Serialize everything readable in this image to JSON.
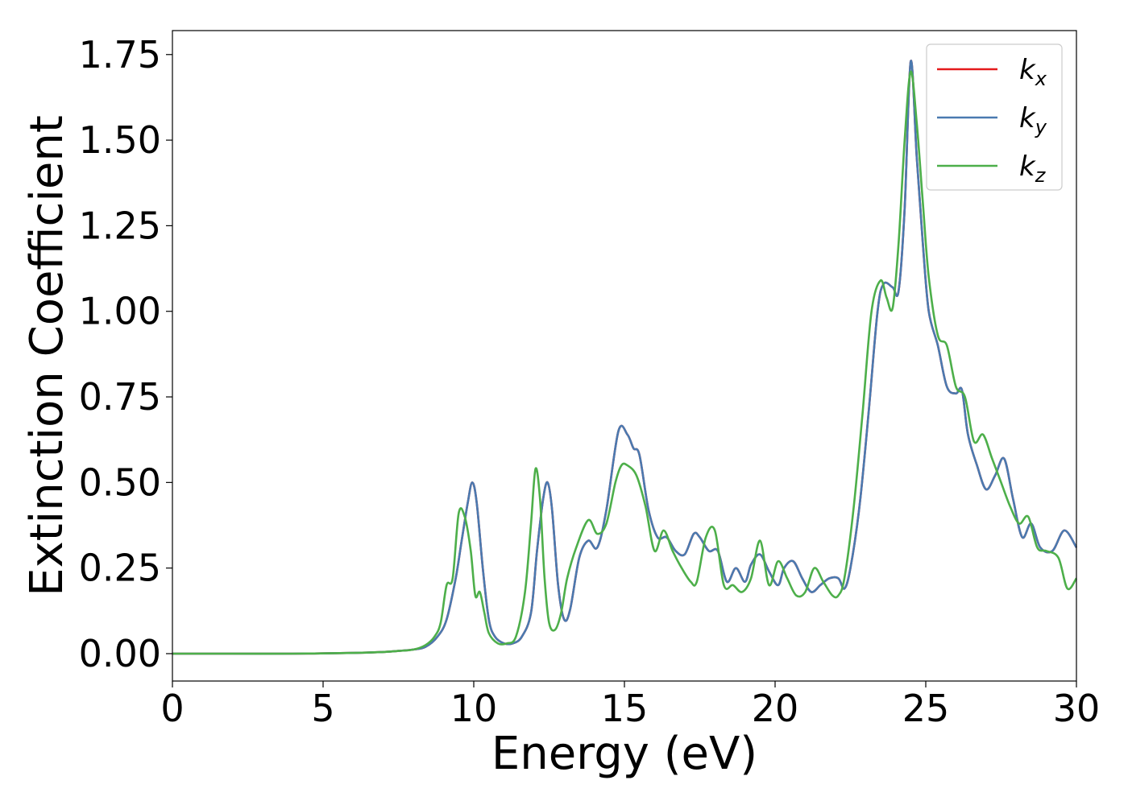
{
  "chart_data": {
    "type": "line",
    "xlabel": "Energy (eV)",
    "ylabel": "Extinction Coefficient",
    "xlim": [
      0,
      30
    ],
    "ylim": [
      -0.08,
      1.82
    ],
    "xticks": [
      0,
      5,
      10,
      15,
      20,
      25,
      30
    ],
    "xtick_labels": [
      "0",
      "5",
      "10",
      "15",
      "20",
      "25",
      "30"
    ],
    "yticks": [
      0.0,
      0.25,
      0.5,
      0.75,
      1.0,
      1.25,
      1.5,
      1.75
    ],
    "ytick_labels": [
      "0.00",
      "0.25",
      "0.50",
      "0.75",
      "1.00",
      "1.25",
      "1.50",
      "1.75"
    ],
    "grid": false,
    "legend": {
      "position": "top-right"
    },
    "series": [
      {
        "name": "k",
        "subscript": "x",
        "color": "#e41a1c",
        "x": [
          0,
          2,
          4,
          6,
          7,
          7.5,
          8,
          8.4,
          8.8,
          9.1,
          9.4,
          9.6,
          9.8,
          9.95,
          10.1,
          10.3,
          10.5,
          10.7,
          11.0,
          11.3,
          11.6,
          11.9,
          12.1,
          12.3,
          12.45,
          12.6,
          12.8,
          13.0,
          13.2,
          13.5,
          13.8,
          14.1,
          14.4,
          14.8,
          15.1,
          15.3,
          15.5,
          15.8,
          16.1,
          16.4,
          16.7,
          17.0,
          17.3,
          17.5,
          17.8,
          18.1,
          18.4,
          18.7,
          19.0,
          19.2,
          19.5,
          19.8,
          20.1,
          20.3,
          20.6,
          20.9,
          21.2,
          21.5,
          21.8,
          22.1,
          22.3,
          22.5,
          22.8,
          23.1,
          23.4,
          23.6,
          23.9,
          24.1,
          24.3,
          24.5,
          24.7,
          24.9,
          25.1,
          25.4,
          25.7,
          26.0,
          26.2,
          26.4,
          26.7,
          27.0,
          27.3,
          27.6,
          27.9,
          28.2,
          28.5,
          28.8,
          29.2,
          29.6,
          30.0
        ],
        "values": [
          0.0,
          0.0,
          0.0,
          0.002,
          0.005,
          0.008,
          0.012,
          0.02,
          0.05,
          0.1,
          0.22,
          0.33,
          0.44,
          0.5,
          0.44,
          0.25,
          0.1,
          0.05,
          0.03,
          0.03,
          0.05,
          0.12,
          0.3,
          0.45,
          0.5,
          0.42,
          0.2,
          0.1,
          0.13,
          0.28,
          0.33,
          0.31,
          0.42,
          0.65,
          0.64,
          0.6,
          0.58,
          0.42,
          0.34,
          0.34,
          0.3,
          0.29,
          0.35,
          0.34,
          0.3,
          0.3,
          0.21,
          0.25,
          0.21,
          0.26,
          0.29,
          0.24,
          0.2,
          0.25,
          0.27,
          0.22,
          0.18,
          0.2,
          0.22,
          0.22,
          0.19,
          0.25,
          0.43,
          0.7,
          1.0,
          1.08,
          1.07,
          1.06,
          1.3,
          1.73,
          1.45,
          1.2,
          1.0,
          0.9,
          0.78,
          0.76,
          0.77,
          0.64,
          0.55,
          0.48,
          0.52,
          0.57,
          0.45,
          0.34,
          0.38,
          0.31,
          0.3,
          0.36,
          0.31
        ]
      },
      {
        "name": "k",
        "subscript": "y",
        "color": "#4a7ab0",
        "x": [
          0,
          2,
          4,
          6,
          7,
          7.5,
          8,
          8.4,
          8.8,
          9.1,
          9.4,
          9.6,
          9.8,
          9.95,
          10.1,
          10.3,
          10.5,
          10.7,
          11.0,
          11.3,
          11.6,
          11.9,
          12.1,
          12.3,
          12.45,
          12.6,
          12.8,
          13.0,
          13.2,
          13.5,
          13.8,
          14.1,
          14.4,
          14.8,
          15.1,
          15.3,
          15.5,
          15.8,
          16.1,
          16.4,
          16.7,
          17.0,
          17.3,
          17.5,
          17.8,
          18.1,
          18.4,
          18.7,
          19.0,
          19.2,
          19.5,
          19.8,
          20.1,
          20.3,
          20.6,
          20.9,
          21.2,
          21.5,
          21.8,
          22.1,
          22.3,
          22.5,
          22.8,
          23.1,
          23.4,
          23.6,
          23.9,
          24.1,
          24.3,
          24.5,
          24.7,
          24.9,
          25.1,
          25.4,
          25.7,
          26.0,
          26.2,
          26.4,
          26.7,
          27.0,
          27.3,
          27.6,
          27.9,
          28.2,
          28.5,
          28.8,
          29.2,
          29.6,
          30.0
        ],
        "values": [
          0.0,
          0.0,
          0.0,
          0.002,
          0.005,
          0.008,
          0.012,
          0.02,
          0.05,
          0.1,
          0.22,
          0.33,
          0.44,
          0.5,
          0.44,
          0.25,
          0.1,
          0.05,
          0.03,
          0.03,
          0.05,
          0.12,
          0.3,
          0.45,
          0.5,
          0.42,
          0.2,
          0.1,
          0.13,
          0.28,
          0.33,
          0.31,
          0.42,
          0.65,
          0.64,
          0.6,
          0.58,
          0.42,
          0.34,
          0.34,
          0.3,
          0.29,
          0.35,
          0.34,
          0.3,
          0.3,
          0.21,
          0.25,
          0.21,
          0.26,
          0.29,
          0.24,
          0.2,
          0.25,
          0.27,
          0.22,
          0.18,
          0.2,
          0.22,
          0.22,
          0.19,
          0.25,
          0.43,
          0.7,
          1.0,
          1.08,
          1.07,
          1.06,
          1.3,
          1.73,
          1.45,
          1.2,
          1.0,
          0.9,
          0.78,
          0.76,
          0.77,
          0.64,
          0.55,
          0.48,
          0.52,
          0.57,
          0.45,
          0.34,
          0.38,
          0.31,
          0.3,
          0.36,
          0.31
        ]
      },
      {
        "name": "k",
        "subscript": "z",
        "color": "#4daf4a",
        "x": [
          0,
          2,
          4,
          6,
          7,
          7.5,
          8,
          8.4,
          8.7,
          8.9,
          9.1,
          9.3,
          9.5,
          9.7,
          9.9,
          10.05,
          10.2,
          10.35,
          10.5,
          10.8,
          11.1,
          11.4,
          11.7,
          11.9,
          12.05,
          12.2,
          12.35,
          12.5,
          12.7,
          12.9,
          13.1,
          13.4,
          13.8,
          14.1,
          14.4,
          14.7,
          14.9,
          15.1,
          15.4,
          15.7,
          16.0,
          16.3,
          16.6,
          16.9,
          17.2,
          17.4,
          17.7,
          18.0,
          18.3,
          18.6,
          18.9,
          19.2,
          19.5,
          19.8,
          20.1,
          20.4,
          20.7,
          21.0,
          21.3,
          21.6,
          21.9,
          22.1,
          22.3,
          22.6,
          22.9,
          23.2,
          23.5,
          23.7,
          23.9,
          24.1,
          24.3,
          24.5,
          24.7,
          24.9,
          25.1,
          25.4,
          25.7,
          26.0,
          26.3,
          26.6,
          26.9,
          27.2,
          27.5,
          27.8,
          28.1,
          28.4,
          28.7,
          29.0,
          29.4,
          29.7,
          30.0
        ],
        "values": [
          0.0,
          0.0,
          0.0,
          0.002,
          0.005,
          0.008,
          0.012,
          0.025,
          0.05,
          0.09,
          0.2,
          0.22,
          0.41,
          0.4,
          0.3,
          0.17,
          0.18,
          0.12,
          0.06,
          0.03,
          0.03,
          0.05,
          0.18,
          0.38,
          0.54,
          0.45,
          0.22,
          0.09,
          0.07,
          0.12,
          0.22,
          0.31,
          0.39,
          0.35,
          0.38,
          0.5,
          0.55,
          0.55,
          0.52,
          0.43,
          0.3,
          0.36,
          0.3,
          0.25,
          0.21,
          0.21,
          0.34,
          0.36,
          0.2,
          0.2,
          0.18,
          0.22,
          0.33,
          0.2,
          0.27,
          0.22,
          0.17,
          0.18,
          0.25,
          0.21,
          0.17,
          0.17,
          0.22,
          0.42,
          0.7,
          1.0,
          1.09,
          1.04,
          1.01,
          1.2,
          1.5,
          1.7,
          1.55,
          1.32,
          1.1,
          0.93,
          0.9,
          0.78,
          0.75,
          0.62,
          0.64,
          0.57,
          0.5,
          0.43,
          0.38,
          0.4,
          0.31,
          0.3,
          0.28,
          0.19,
          0.22
        ]
      }
    ]
  }
}
